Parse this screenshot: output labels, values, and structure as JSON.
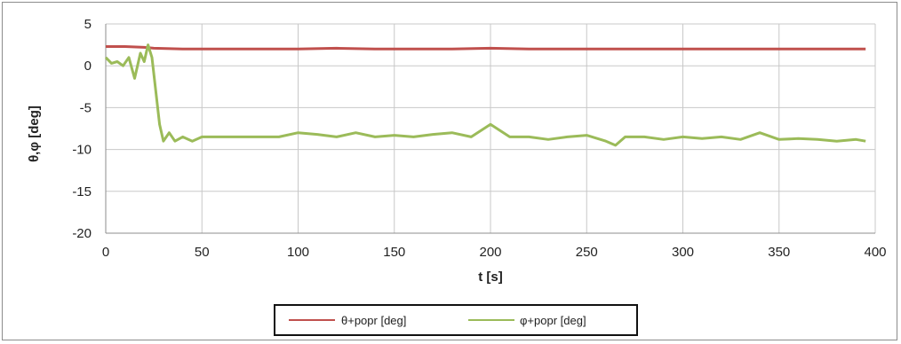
{
  "chart_data": {
    "type": "line",
    "xlabel": "t [s]",
    "ylabel": "θ,φ [deg]",
    "xlim": [
      0,
      400
    ],
    "ylim": [
      -20,
      5
    ],
    "xticks": [
      "0",
      "50",
      "100",
      "150",
      "200",
      "250",
      "300",
      "350",
      "400"
    ],
    "yticks": [
      "5",
      "0",
      "-5",
      "-10",
      "-15",
      "-20"
    ],
    "grid": true,
    "legend_position": "bottom",
    "series": [
      {
        "name": "θ+popr  [deg]",
        "color": "#c0504d",
        "x": [
          0,
          10,
          20,
          25,
          40,
          60,
          80,
          100,
          120,
          140,
          160,
          180,
          200,
          220,
          240,
          260,
          280,
          300,
          320,
          340,
          360,
          380,
          395
        ],
        "y": [
          2.3,
          2.3,
          2.2,
          2.1,
          2.0,
          2.0,
          2.0,
          2.0,
          2.1,
          2.0,
          2.0,
          2.0,
          2.1,
          2.0,
          2.0,
          2.0,
          2.0,
          2.0,
          2.0,
          2.0,
          2.0,
          2.0,
          2.0
        ]
      },
      {
        "name": "φ+popr [deg]",
        "color": "#9bbb59",
        "x": [
          0,
          3,
          6,
          9,
          12,
          15,
          18,
          20,
          22,
          24,
          26,
          28,
          30,
          33,
          36,
          40,
          45,
          50,
          60,
          70,
          80,
          90,
          100,
          110,
          120,
          130,
          140,
          150,
          160,
          170,
          180,
          190,
          200,
          210,
          220,
          230,
          240,
          250,
          260,
          265,
          270,
          280,
          290,
          300,
          310,
          320,
          330,
          340,
          350,
          360,
          370,
          380,
          390,
          395
        ],
        "y": [
          1.0,
          0.3,
          0.5,
          0.0,
          1.0,
          -1.5,
          1.5,
          0.5,
          2.5,
          1.0,
          -3.0,
          -7.0,
          -9.0,
          -8.0,
          -9.0,
          -8.5,
          -9.0,
          -8.5,
          -8.5,
          -8.5,
          -8.5,
          -8.5,
          -8.0,
          -8.2,
          -8.5,
          -8.0,
          -8.5,
          -8.3,
          -8.5,
          -8.2,
          -8.0,
          -8.5,
          -7.0,
          -8.5,
          -8.5,
          -8.8,
          -8.5,
          -8.3,
          -9.0,
          -9.5,
          -8.5,
          -8.5,
          -8.8,
          -8.5,
          -8.7,
          -8.5,
          -8.8,
          -8.0,
          -8.8,
          -8.7,
          -8.8,
          -9.0,
          -8.8,
          -9.0
        ]
      }
    ]
  }
}
